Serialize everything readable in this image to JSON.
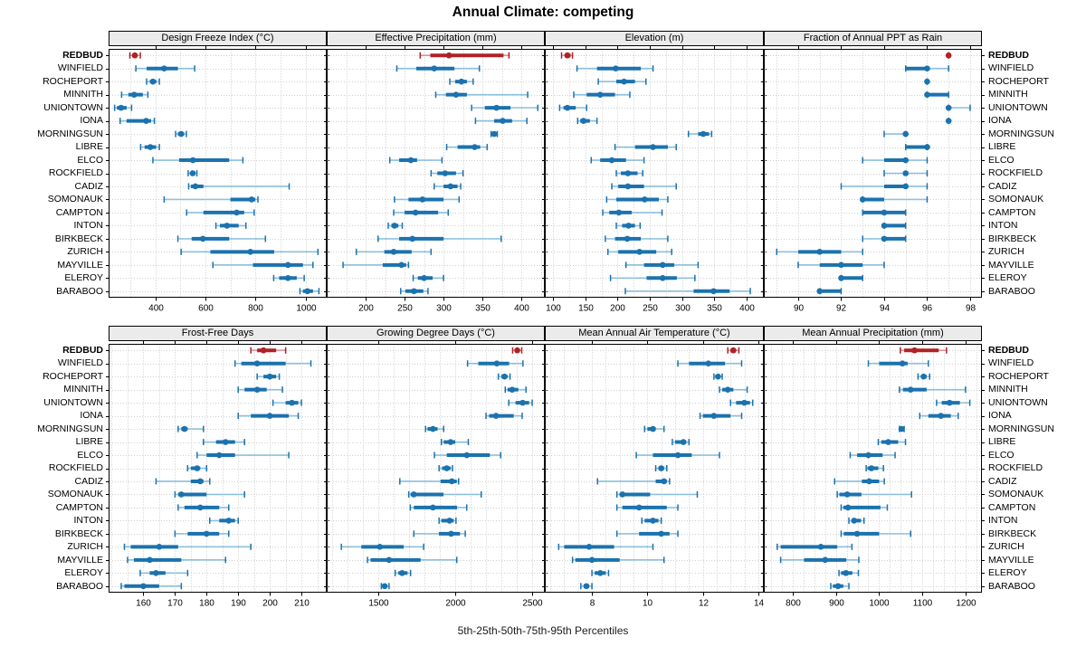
{
  "title": "Annual Climate: competing",
  "caption": "5th-25th-50th-75th-95th Percentiles",
  "percentile_labels": [
    "5th",
    "25th",
    "50th",
    "75th",
    "95th"
  ],
  "locations": [
    "REDBUD",
    "WINFIELD",
    "ROCHEPORT",
    "MINNITH",
    "UNIONTOWN",
    "IONA",
    "MORNINGSUN",
    "LIBRE",
    "ELCO",
    "ROCKFIELD",
    "CADIZ",
    "SOMONAUK",
    "CAMPTON",
    "INTON",
    "BIRKBECK",
    "ZURICH",
    "MAYVILLE",
    "ELEROY",
    "BARABOO"
  ],
  "highlight_location": "REDBUD",
  "colors": {
    "highlight": "#b02126",
    "highlight_light": "#dc9497",
    "normal": "#1b72ae",
    "normal_light": "#8fc0de",
    "grid": "#c9c9c9",
    "row_grid": "#cfcfcf",
    "strip_bg": "#ebebeb",
    "border": "#000000",
    "text": "#000000"
  },
  "chart_data": [
    {
      "type": "dotplot-percentiles",
      "panel": "Design Freeze Index (°C)",
      "grid_row": 1,
      "grid_col": 1,
      "xlim": [
        213,
        1085
      ],
      "ticks": [
        400,
        600,
        800,
        1000
      ],
      "grid_step": 100,
      "values": [
        [
          298,
          308,
          318,
          328,
          340
        ],
        [
          322,
          365,
          435,
          490,
          557
        ],
        [
          365,
          378,
          390,
          404,
          416
        ],
        [
          265,
          292,
          315,
          350,
          370
        ],
        [
          237,
          246,
          263,
          285,
          305
        ],
        [
          259,
          285,
          363,
          383,
          396
        ],
        [
          481,
          490,
          503,
          515,
          524
        ],
        [
          341,
          357,
          380,
          403,
          416
        ],
        [
          390,
          495,
          550,
          695,
          750
        ],
        [
          531,
          540,
          549,
          560,
          566
        ],
        [
          533,
          542,
          560,
          592,
          935
        ],
        [
          435,
          700,
          785,
          800,
          810
        ],
        [
          525,
          592,
          725,
          755,
          795
        ],
        [
          642,
          658,
          686,
          733,
          762
        ],
        [
          490,
          545,
          590,
          695,
          840
        ],
        [
          503,
          620,
          780,
          875,
          1050
        ],
        [
          630,
          790,
          930,
          990,
          1030
        ],
        [
          873,
          895,
          930,
          965,
          995
        ],
        [
          978,
          990,
          1008,
          1030,
          1054
        ]
      ]
    },
    {
      "type": "dotplot-percentiles",
      "panel": "Effective Precipitation (mm)",
      "grid_row": 1,
      "grid_col": 2,
      "xlim": [
        150,
        430
      ],
      "ticks": [
        200,
        250,
        300,
        350,
        400
      ],
      "grid_step": 25,
      "values": [
        [
          270,
          283,
          307,
          377,
          384
        ],
        [
          240,
          265,
          288,
          314,
          346
        ],
        [
          308,
          315,
          323,
          330,
          338
        ],
        [
          290,
          303,
          316,
          330,
          408
        ],
        [
          336,
          353,
          368,
          386,
          421
        ],
        [
          341,
          365,
          376,
          388,
          407
        ],
        [
          361,
          363,
          365,
          367,
          369
        ],
        [
          304,
          318,
          340,
          347,
          356
        ],
        [
          231,
          243,
          258,
          266,
          298
        ],
        [
          284,
          292,
          302,
          316,
          325
        ],
        [
          288,
          300,
          309,
          318,
          322
        ],
        [
          237,
          255,
          273,
          300,
          320
        ],
        [
          236,
          250,
          264,
          293,
          306
        ],
        [
          229,
          233,
          237,
          242,
          247
        ],
        [
          216,
          243,
          260,
          300,
          374
        ],
        [
          188,
          224,
          236,
          259,
          284
        ],
        [
          171,
          222,
          246,
          252,
          255
        ],
        [
          261,
          267,
          275,
          286,
          300
        ],
        [
          245,
          251,
          262,
          274,
          280
        ]
      ]
    },
    {
      "type": "dotplot-percentiles",
      "panel": "Elevation (m)",
      "grid_row": 1,
      "grid_col": 3,
      "xlim": [
        87,
        427
      ],
      "ticks": [
        100,
        150,
        200,
        250,
        300,
        350,
        400
      ],
      "grid_step": 25,
      "values": [
        [
          113,
          118,
          122,
          127,
          130
        ],
        [
          137,
          168,
          197,
          236,
          255
        ],
        [
          170,
          198,
          210,
          227,
          244
        ],
        [
          132,
          152,
          173,
          196,
          219
        ],
        [
          110,
          116,
          122,
          135,
          152
        ],
        [
          138,
          142,
          147,
          157,
          168
        ],
        [
          310,
          325,
          333,
          342,
          346
        ],
        [
          196,
          227,
          255,
          278,
          291
        ],
        [
          159,
          173,
          191,
          213,
          241
        ],
        [
          198,
          205,
          216,
          231,
          239
        ],
        [
          191,
          201,
          216,
          241,
          291
        ],
        [
          183,
          198,
          242,
          264,
          278
        ],
        [
          177,
          187,
          202,
          222,
          269
        ],
        [
          198,
          207,
          217,
          227,
          235
        ],
        [
          181,
          196,
          215,
          236,
          278
        ],
        [
          185,
          201,
          234,
          260,
          284
        ],
        [
          213,
          241,
          270,
          288,
          325
        ],
        [
          189,
          245,
          270,
          292,
          320
        ],
        [
          212,
          318,
          349,
          374,
          406
        ]
      ]
    },
    {
      "type": "dotplot-percentiles",
      "panel": "Fraction of Annual PPT as Rain",
      "grid_row": 1,
      "grid_col": 4,
      "xlim": [
        88.4,
        98.55
      ],
      "ticks": [
        90,
        92,
        94,
        96,
        98
      ],
      "grid_step": 1,
      "values": [
        [
          97,
          97,
          97,
          97,
          97
        ],
        [
          95,
          95,
          96,
          96,
          97
        ],
        [
          96,
          96,
          96,
          96,
          96
        ],
        [
          96,
          96,
          96,
          97,
          97
        ],
        [
          97,
          97,
          97,
          97,
          98
        ],
        [
          97,
          97,
          97,
          97,
          97
        ],
        [
          94,
          95,
          95,
          95,
          95
        ],
        [
          95,
          95,
          96,
          96,
          96
        ],
        [
          93,
          94,
          95,
          95,
          96
        ],
        [
          94,
          95,
          95,
          95,
          96
        ],
        [
          92,
          94,
          95,
          95,
          96
        ],
        [
          93,
          93,
          93,
          94,
          96
        ],
        [
          93,
          93,
          94,
          95,
          95
        ],
        [
          94,
          94,
          94,
          95,
          95
        ],
        [
          93,
          94,
          94,
          95,
          95
        ],
        [
          89,
          90,
          91,
          92,
          93
        ],
        [
          90,
          91,
          92,
          93,
          94
        ],
        [
          92,
          92,
          92,
          93,
          93
        ],
        [
          91,
          91,
          91,
          92,
          92
        ]
      ]
    },
    {
      "type": "dotplot-percentiles",
      "panel": "Frost-Free Days",
      "grid_row": 2,
      "grid_col": 1,
      "xlim": [
        149,
        218
      ],
      "ticks": [
        160,
        170,
        180,
        190,
        200,
        210
      ],
      "grid_step": 5,
      "values": [
        [
          194,
          196,
          198,
          202,
          205
        ],
        [
          189,
          191,
          196,
          205,
          213
        ],
        [
          196,
          198,
          200,
          202,
          203
        ],
        [
          190,
          192,
          196,
          199,
          204
        ],
        [
          201,
          205,
          207,
          209,
          210
        ],
        [
          190,
          194,
          200,
          206,
          209
        ],
        [
          171,
          172,
          173,
          174,
          179
        ],
        [
          179,
          183,
          186,
          189,
          192
        ],
        [
          177,
          180,
          184,
          189,
          206
        ],
        [
          174,
          175,
          177,
          178,
          180
        ],
        [
          164,
          175,
          178,
          179,
          181
        ],
        [
          170,
          171,
          172,
          180,
          192
        ],
        [
          171,
          173,
          178,
          184,
          187
        ],
        [
          181,
          184,
          187,
          189,
          190
        ],
        [
          170,
          174,
          180,
          184,
          187
        ],
        [
          154,
          156,
          165,
          171,
          194
        ],
        [
          155,
          157,
          162,
          172,
          186
        ],
        [
          159,
          162,
          164,
          167,
          174
        ],
        [
          153,
          154,
          160,
          165,
          172
        ]
      ]
    },
    {
      "type": "dotplot-percentiles",
      "panel": "Growing Degree Days (°C)",
      "grid_row": 2,
      "grid_col": 2,
      "xlim": [
        1165,
        2582
      ],
      "ticks": [
        1500,
        2000,
        2500
      ],
      "grid_step": 100,
      "values": [
        [
          2373,
          2390,
          2403,
          2416,
          2432
        ],
        [
          2080,
          2150,
          2270,
          2350,
          2440
        ],
        [
          2280,
          2300,
          2320,
          2340,
          2356
        ],
        [
          2325,
          2340,
          2370,
          2410,
          2460
        ],
        [
          2348,
          2392,
          2438,
          2480,
          2500
        ],
        [
          2200,
          2220,
          2265,
          2380,
          2435
        ],
        [
          1807,
          1820,
          1855,
          1885,
          1925
        ],
        [
          1910,
          1925,
          1970,
          2000,
          2085
        ],
        [
          1865,
          1945,
          2075,
          2225,
          2295
        ],
        [
          1895,
          1915,
          1945,
          1970,
          1982
        ],
        [
          1640,
          1905,
          1978,
          2010,
          2022
        ],
        [
          1698,
          1710,
          1731,
          1924,
          2169
        ],
        [
          1708,
          1731,
          1855,
          2012,
          2075
        ],
        [
          1895,
          1910,
          1963,
          1990,
          2005
        ],
        [
          1731,
          1894,
          1973,
          2031,
          2065
        ],
        [
          1260,
          1390,
          1510,
          1665,
          1795
        ],
        [
          1430,
          1450,
          1570,
          1775,
          2010
        ],
        [
          1610,
          1630,
          1655,
          1690,
          1710
        ],
        [
          1520,
          1530,
          1542,
          1556,
          1570
        ]
      ]
    },
    {
      "type": "dotplot-percentiles",
      "panel": "Mean Annual Air Temperature (°C)",
      "grid_row": 2,
      "grid_col": 3,
      "xlim": [
        6.3,
        14.2
      ],
      "ticks": [
        8,
        10,
        12,
        14
      ],
      "grid_step": 0.5,
      "values": [
        [
          12.9,
          13.0,
          13.1,
          13.2,
          13.3
        ],
        [
          11.1,
          11.5,
          12.2,
          12.8,
          13.4
        ],
        [
          12.4,
          12.45,
          12.55,
          12.6,
          12.7
        ],
        [
          12.6,
          12.7,
          12.9,
          13.1,
          13.6
        ],
        [
          13.0,
          13.2,
          13.5,
          13.7,
          13.8
        ],
        [
          11.9,
          12.0,
          12.4,
          13.0,
          13.4
        ],
        [
          9.9,
          10.0,
          10.2,
          10.3,
          10.6
        ],
        [
          10.9,
          11.0,
          11.3,
          11.4,
          11.5
        ],
        [
          9.6,
          10.2,
          11.1,
          11.6,
          12.6
        ],
        [
          10.3,
          10.4,
          10.5,
          10.6,
          10.7
        ],
        [
          8.2,
          10.3,
          10.6,
          10.7,
          10.8
        ],
        [
          8.9,
          9.0,
          9.1,
          10.1,
          11.8
        ],
        [
          8.9,
          9.1,
          9.7,
          10.7,
          11.1
        ],
        [
          9.8,
          9.9,
          10.2,
          10.4,
          10.5
        ],
        [
          8.9,
          9.7,
          10.5,
          10.8,
          11.1
        ],
        [
          6.8,
          7.0,
          7.9,
          8.8,
          10.2
        ],
        [
          7.3,
          7.4,
          8.0,
          9.0,
          10.6
        ],
        [
          8.0,
          8.1,
          8.3,
          8.5,
          8.6
        ],
        [
          7.6,
          7.7,
          7.8,
          7.9,
          8.0
        ]
      ]
    },
    {
      "type": "dotplot-percentiles",
      "panel": "Mean Annual Precipitation (mm)",
      "grid_row": 2,
      "grid_col": 4,
      "xlim": [
        733,
        1238
      ],
      "ticks": [
        800,
        900,
        1000,
        1100,
        1200
      ],
      "grid_step": 25,
      "values": [
        [
          1049,
          1058,
          1082,
          1138,
          1156
        ],
        [
          975,
          1000,
          1054,
          1066,
          1114
        ],
        [
          1090,
          1097,
          1103,
          1110,
          1117
        ],
        [
          1047,
          1055,
          1073,
          1110,
          1200
        ],
        [
          1133,
          1145,
          1163,
          1187,
          1210
        ],
        [
          1094,
          1114,
          1143,
          1166,
          1183
        ],
        [
          1047,
          1049,
          1052,
          1055,
          1058
        ],
        [
          998,
          1005,
          1021,
          1044,
          1061
        ],
        [
          933,
          949,
          975,
          1008,
          1037
        ],
        [
          970,
          973,
          982,
          998,
          1010
        ],
        [
          897,
          960,
          977,
          1000,
          1012
        ],
        [
          903,
          908,
          926,
          959,
          1075
        ],
        [
          912,
          917,
          928,
          1003,
          1019
        ],
        [
          930,
          938,
          942,
          958,
          965
        ],
        [
          912,
          918,
          949,
          1000,
          1073
        ],
        [
          764,
          772,
          865,
          903,
          937
        ],
        [
          772,
          826,
          875,
          924,
          953
        ],
        [
          907,
          912,
          923,
          938,
          952
        ],
        [
          888,
          893,
          905,
          917,
          930
        ]
      ]
    }
  ]
}
